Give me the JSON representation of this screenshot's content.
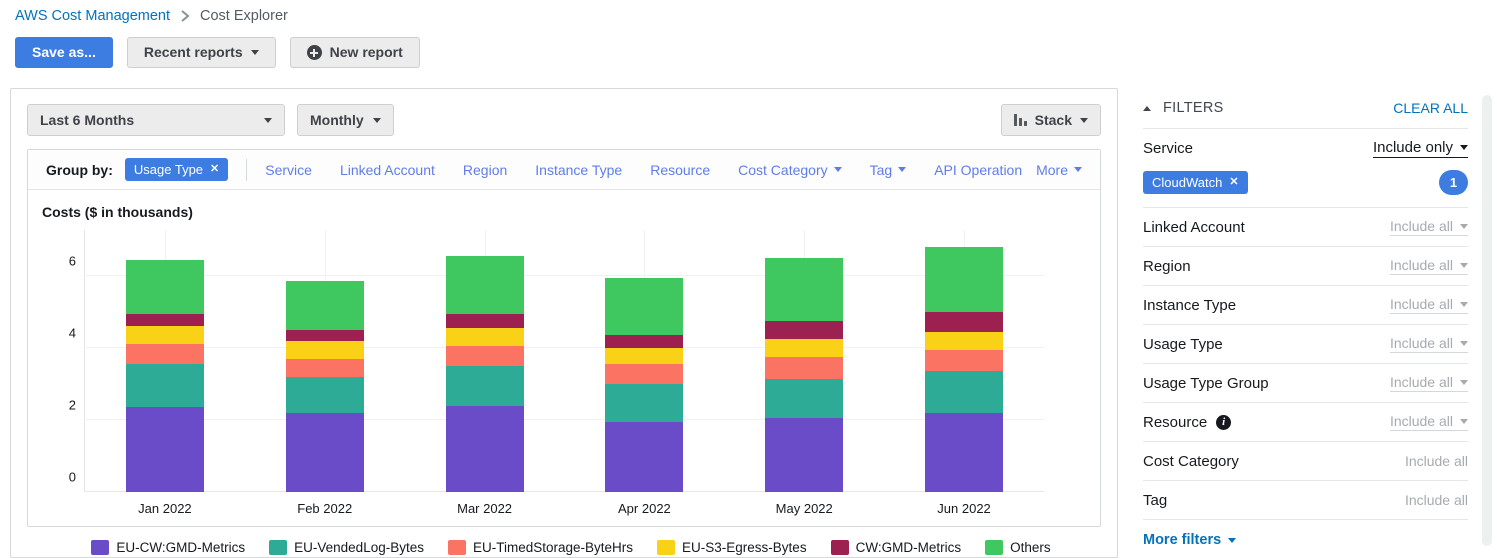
{
  "breadcrumb": {
    "root": "AWS Cost Management",
    "current": "Cost Explorer"
  },
  "toolbar": {
    "save_as": "Save as...",
    "recent_reports": "Recent reports",
    "new_report": "New report"
  },
  "controls": {
    "date_range": "Last 6 Months",
    "granularity": "Monthly",
    "chart_type": "Stack"
  },
  "group_by": {
    "label": "Group by:",
    "chip": "Usage Type",
    "links": [
      {
        "label": "Service",
        "caret": false
      },
      {
        "label": "Linked Account",
        "caret": false
      },
      {
        "label": "Region",
        "caret": false
      },
      {
        "label": "Instance Type",
        "caret": false
      },
      {
        "label": "Resource",
        "caret": false
      },
      {
        "label": "Cost Category",
        "caret": true
      },
      {
        "label": "Tag",
        "caret": true
      },
      {
        "label": "API Operation",
        "caret": false
      }
    ],
    "more": "More"
  },
  "chart_data": {
    "type": "bar",
    "stacked": true,
    "title": "Costs ($ in thousands)",
    "categories": [
      "Jan 2022",
      "Feb 2022",
      "Mar 2022",
      "Apr 2022",
      "May 2022",
      "Jun 2022"
    ],
    "series": [
      {
        "name": "EU-CW:GMD-Metrics",
        "color": "#6b4cc8",
        "values": [
          2.35,
          2.2,
          2.4,
          1.95,
          2.05,
          2.2
        ]
      },
      {
        "name": "EU-VendedLog-Bytes",
        "color": "#2dab97",
        "values": [
          1.2,
          1.0,
          1.1,
          1.05,
          1.1,
          1.15
        ]
      },
      {
        "name": "EU-TimedStorage-ByteHrs",
        "color": "#fb7363",
        "values": [
          0.55,
          0.5,
          0.55,
          0.55,
          0.6,
          0.6
        ]
      },
      {
        "name": "EU-S3-Egress-Bytes",
        "color": "#f9d116",
        "values": [
          0.5,
          0.5,
          0.5,
          0.45,
          0.5,
          0.5
        ]
      },
      {
        "name": "CW:GMD-Metrics",
        "color": "#9d2150",
        "values": [
          0.35,
          0.3,
          0.4,
          0.35,
          0.5,
          0.55
        ]
      },
      {
        "name": "Others",
        "color": "#3fc85f",
        "values": [
          1.5,
          1.35,
          1.6,
          1.6,
          1.75,
          1.8
        ]
      }
    ],
    "ylabel": "Costs ($ in thousands)",
    "yticks": [
      0,
      2,
      4,
      6
    ],
    "ylim": [
      0,
      6.8
    ],
    "grid": true,
    "legend_position": "bottom"
  },
  "filters": {
    "header": "FILTERS",
    "clear_all": "CLEAR ALL",
    "rows": [
      {
        "label": "Service",
        "action": "Include only",
        "caret": true,
        "active": true,
        "info": false,
        "chip": "CloudWatch",
        "count": "1"
      },
      {
        "label": "Linked Account",
        "action": "Include all",
        "caret": true,
        "active": false,
        "info": false
      },
      {
        "label": "Region",
        "action": "Include all",
        "caret": true,
        "active": false,
        "info": false
      },
      {
        "label": "Instance Type",
        "action": "Include all",
        "caret": true,
        "active": false,
        "info": false
      },
      {
        "label": "Usage Type",
        "action": "Include all",
        "caret": true,
        "active": false,
        "info": false
      },
      {
        "label": "Usage Type Group",
        "action": "Include all",
        "caret": true,
        "active": false,
        "info": false
      },
      {
        "label": "Resource",
        "action": "Include all",
        "caret": true,
        "active": false,
        "info": true
      },
      {
        "label": "Cost Category",
        "action": "Include all",
        "caret": false,
        "active": false,
        "info": false
      },
      {
        "label": "Tag",
        "action": "Include all",
        "caret": false,
        "active": false,
        "info": false
      }
    ],
    "more_filters": "More filters"
  }
}
